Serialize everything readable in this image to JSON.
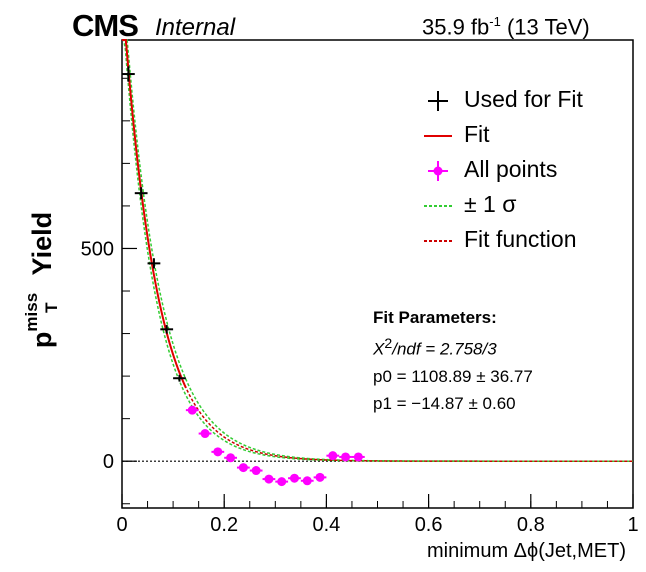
{
  "header": {
    "experiment": "CMS",
    "status": "Internal",
    "lumi_value": "35.9 fb",
    "lumi_exp": "-1",
    "energy": "(13 TeV)"
  },
  "axes": {
    "ylabel_p": "p",
    "ylabel_sup": "miss",
    "ylabel_sub": "T",
    "ylabel_rest": " Yield",
    "xlabel": "minimum  Δϕ(Jet,MET)"
  },
  "legend": {
    "used": "Used for Fit",
    "fit": "Fit",
    "all": "All points",
    "sigma": "± 1 σ",
    "fitfunc": "Fit function"
  },
  "fit_params": {
    "title": "Fit Parameters:",
    "chi2_label": "X",
    "chi2_exp": "2",
    "chi2_rest": "/ndf = 2.758/3",
    "p0": "p0 = 1108.89 ± 36.77",
    "p1": "p1 = −14.87 ± 0.60"
  },
  "colors": {
    "used": "#000000",
    "fit": "#e00000",
    "all": "#ff00ff",
    "sigma": "#33cc33",
    "fitfunc": "#cc0000"
  },
  "chart_data": {
    "type": "scatter",
    "xlim": [
      0,
      1
    ],
    "ylim": [
      -110,
      990
    ],
    "x_ticks": [
      0,
      0.2,
      0.4,
      0.6,
      0.8,
      1
    ],
    "x_tick_labels": [
      "0",
      "0.2",
      "0.4",
      "0.6",
      "0.8",
      "1"
    ],
    "y_ticks": [
      0,
      500
    ],
    "y_tick_labels": [
      "0",
      "500"
    ],
    "bin_half_width": 0.0125,
    "series": [
      {
        "name": "Used for Fit",
        "x": [
          0.0125,
          0.0375,
          0.0625,
          0.0875,
          0.1125
        ],
        "y": [
          910,
          630,
          465,
          310,
          195
        ],
        "yerr": [
          18,
          14,
          12,
          10,
          8
        ]
      },
      {
        "name": "All points",
        "x": [
          0.1375,
          0.1625,
          0.1875,
          0.2125,
          0.2375,
          0.2625,
          0.2875,
          0.3125,
          0.3375,
          0.3625,
          0.3875,
          0.4125,
          0.4375,
          0.4625
        ],
        "y": [
          120,
          65,
          22,
          8,
          -15,
          -22,
          -42,
          -48,
          -40,
          -46,
          -38,
          13,
          10,
          10
        ],
        "yerr": [
          8,
          7,
          6,
          6,
          6,
          6,
          6,
          6,
          6,
          6,
          6,
          6,
          6,
          6
        ]
      }
    ],
    "fit": {
      "p0": 1108.89,
      "p1": -14.87,
      "p0_err": 36.77,
      "p1_err": 0.6,
      "x_max": 1.0
    },
    "zero_line": true
  }
}
